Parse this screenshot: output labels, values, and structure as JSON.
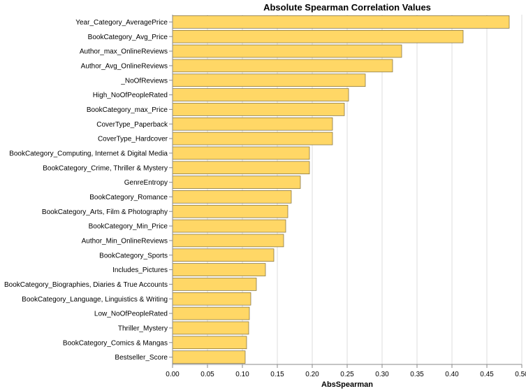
{
  "chart_data": {
    "type": "bar",
    "orientation": "horizontal",
    "title": "Absolute Spearman Correlation Values",
    "xlabel": "AbsSpearman",
    "ylabel": "",
    "xlim": [
      0,
      0.5
    ],
    "x_ticks": [
      "0.00",
      "0.05",
      "0.10",
      "0.15",
      "0.20",
      "0.25",
      "0.30",
      "0.35",
      "0.40",
      "0.45",
      "0.50"
    ],
    "grid": true,
    "bar_color": "#FFD766",
    "bar_stroke": "#7a6a3a",
    "categories": [
      "Year_Category_AveragePrice",
      "BookCategory_Avg_Price",
      "Author_max_OnlineReviews",
      "Author_Avg_OnlineReviews",
      "_NoOfReviews",
      "High_NoOfPeopleRated",
      "BookCategory_max_Price",
      "CoverType_Paperback",
      "CoverType_Hardcover",
      "BookCategory_Computing, Internet & Digital Media",
      "BookCategory_Crime, Thriller & Mystery",
      "GenreEntropy",
      "BookCategory_Romance",
      "BookCategory_Arts, Film & Photography",
      "BookCategory_Min_Price",
      "Author_Min_OnlineReviews",
      "BookCategory_Sports",
      "Includes_Pictures",
      "BookCategory_Biographies, Diaries & True Accounts",
      "BookCategory_Language, Linguistics & Writing",
      "Low_NoOfPeopleRated",
      "Thriller_Mystery",
      "BookCategory_Comics & Mangas",
      "Bestseller_Score"
    ],
    "values": [
      0.482,
      0.416,
      0.328,
      0.315,
      0.276,
      0.252,
      0.246,
      0.229,
      0.229,
      0.196,
      0.196,
      0.183,
      0.17,
      0.165,
      0.162,
      0.159,
      0.145,
      0.133,
      0.12,
      0.112,
      0.11,
      0.109,
      0.106,
      0.104
    ]
  }
}
